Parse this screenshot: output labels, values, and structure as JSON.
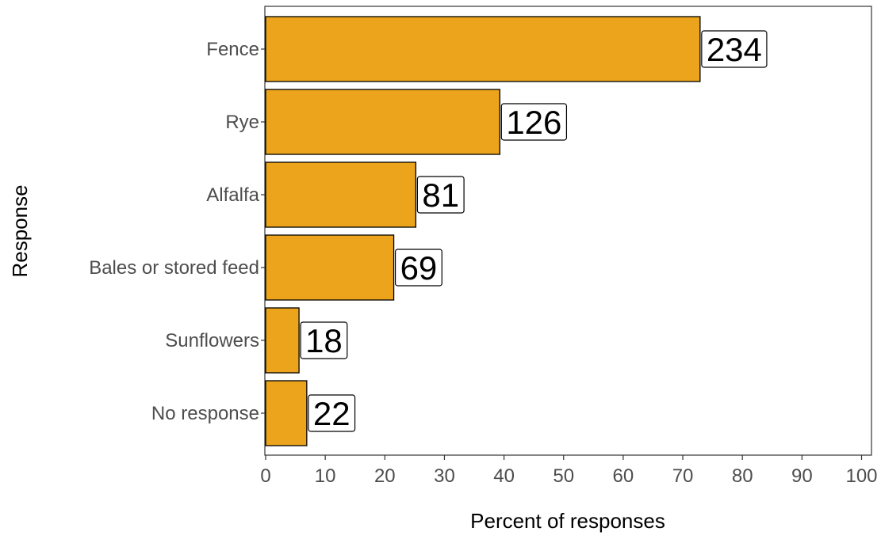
{
  "chart_data": {
    "type": "bar",
    "orientation": "horizontal",
    "categories": [
      "Fence",
      "Rye",
      "Alfalfa",
      "Bales or stored feed",
      "Sunflowers",
      "No response"
    ],
    "values": [
      72.9,
      39.3,
      25.2,
      21.5,
      5.6,
      6.9
    ],
    "data_labels": [
      "234",
      "126",
      "81",
      "69",
      "18",
      "22"
    ],
    "xlabel": "Percent of responses",
    "ylabel": "Response",
    "xlim": [
      0,
      100
    ],
    "xticks": [
      0,
      10,
      20,
      30,
      40,
      50,
      60,
      70,
      80,
      90,
      100
    ],
    "grid": false,
    "bar_color": "#EBA41B",
    "bar_outline": "#000000"
  }
}
